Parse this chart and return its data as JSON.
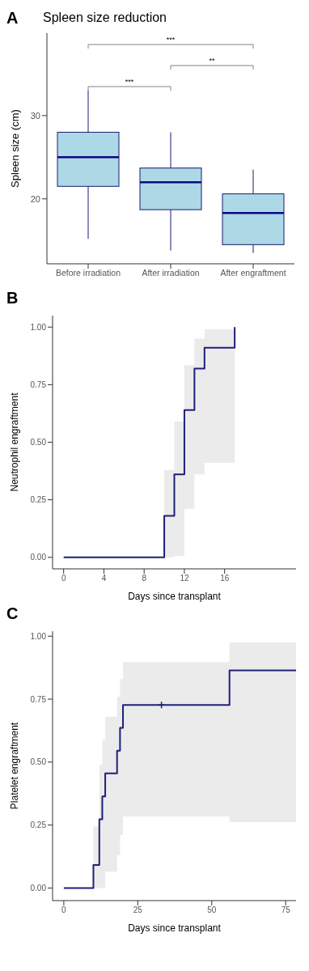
{
  "chart_data": [
    {
      "type": "box",
      "title": "Spleen size reduction",
      "ylabel": "Spleen size (cm)",
      "categories": [
        "Before irradiation",
        "After irradiation",
        "After engraftment"
      ],
      "color": "#add8e6",
      "ylim": [
        12.2,
        39.9
      ],
      "yticks": [
        20,
        30
      ],
      "annotations": [
        "A",
        "***",
        "**",
        "***"
      ],
      "boxes": [
        {
          "low": 15.2,
          "q1": 21.5,
          "median": 25.0,
          "q3": 28.0,
          "high": 33.0
        },
        {
          "low": 13.8,
          "q1": 18.7,
          "median": 22.0,
          "q3": 23.7,
          "high": 28.0
        },
        {
          "low": 13.5,
          "q1": 14.5,
          "median": 18.3,
          "q3": 20.6,
          "high": 23.5
        }
      ]
    },
    {
      "type": "step",
      "xlabel": "Days since transplant",
      "ylabel": "Neutrophil engraftment",
      "xlim": [
        -1.1,
        23.1
      ],
      "xticks": [
        0,
        4,
        8,
        12,
        16
      ],
      "ylim": [
        -0.05,
        1.05
      ],
      "yticks": [
        {
          "value": 0,
          "label": "0.00"
        },
        {
          "value": 0.25,
          "label": "0.25"
        },
        {
          "value": 0.5,
          "label": "0.50"
        },
        {
          "value": 0.75,
          "label": "0.75"
        },
        {
          "value": 1,
          "label": "1.00"
        }
      ],
      "annotations": [
        "B"
      ],
      "series": [
        {
          "color": "#1f1f7a",
          "x": [
            0,
            10,
            11,
            12,
            13,
            14,
            17
          ],
          "values": [
            0,
            0.18,
            0.36,
            0.64,
            0.82,
            0.91,
            1.0
          ],
          "lower": [
            null,
            0,
            0.005,
            0.21,
            0.36,
            0.41,
            0.41
          ],
          "upper": [
            null,
            0.38,
            0.59,
            0.835,
            0.95,
            0.99,
            0.99
          ]
        }
      ]
    },
    {
      "type": "step",
      "xlabel": "Days since transplant",
      "ylabel": "Platelet engraftment",
      "xlim": [
        -3.8,
        78.5
      ],
      "xticks": [
        0,
        25,
        50,
        75
      ],
      "ylim": [
        -0.05,
        1.02
      ],
      "yticks": [
        {
          "value": 0,
          "label": "0.00"
        },
        {
          "value": 0.25,
          "label": "0.25"
        },
        {
          "value": 0.5,
          "label": "0.50"
        },
        {
          "value": 0.75,
          "label": "0.75"
        },
        {
          "value": 1,
          "label": "1.00"
        }
      ],
      "annotations": [
        "C"
      ],
      "series": [
        {
          "color": "#1f1f7a",
          "x": [
            0,
            10,
            12,
            13,
            14,
            18,
            19,
            20,
            56,
            78.5
          ],
          "values": [
            0,
            0.091,
            0.273,
            0.364,
            0.455,
            0.545,
            0.636,
            0.727,
            0.864,
            0.864
          ],
          "lower": [
            null,
            0,
            0,
            0,
            0.065,
            0.13,
            0.21,
            0.284,
            0.262,
            0.262
          ],
          "upper": [
            null,
            0.246,
            0.49,
            0.59,
            0.68,
            0.76,
            0.83,
            0.897,
            0.976,
            0.976
          ]
        },
        {
          "type": "scatter",
          "color": "#1f1f7a",
          "marker": "cross",
          "x": [
            33
          ],
          "values": [
            0.727
          ]
        }
      ]
    }
  ]
}
